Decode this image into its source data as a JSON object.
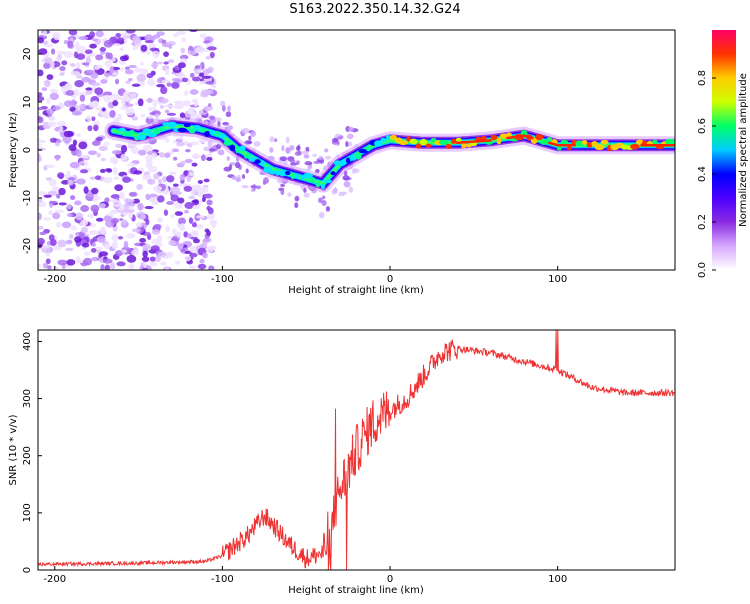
{
  "title": "S163.2022.350.14.32.G24",
  "chart_data": [
    {
      "type": "heatmap",
      "xlabel": "Height of straight line (km)",
      "ylabel": "Frequency (Hz)",
      "xlim": [
        -210,
        170
      ],
      "ylim": [
        -25,
        25
      ],
      "xticks": [
        -200,
        -100,
        0,
        100
      ],
      "yticks": [
        -20,
        -10,
        0,
        10,
        20
      ],
      "colorbar": {
        "label": "Normalized spectral amplitude",
        "range": [
          0,
          1
        ],
        "ticks": [
          "0.0",
          "0.2",
          "0.4",
          "0.6",
          "0.8"
        ],
        "tick_values": [
          0,
          0.2,
          0.4,
          0.6,
          0.8
        ],
        "colors": [
          "#ffffff",
          "#d7a8ff",
          "#8a2be2",
          "#4b00ff",
          "#0000ff",
          "#00ccff",
          "#00ff66",
          "#ccff00",
          "#ffcc00",
          "#ff3300",
          "#ff0066"
        ]
      },
      "ridge": {
        "x": [
          -165,
          -150,
          -130,
          -115,
          -100,
          -90,
          -80,
          -70,
          -60,
          -50,
          -40,
          -30,
          -20,
          -10,
          0,
          20,
          40,
          60,
          80,
          90,
          100,
          120,
          140,
          170
        ],
        "y": [
          4,
          3,
          5,
          4.5,
          3,
          0,
          -2,
          -4,
          -5,
          -6,
          -7,
          -3,
          -1,
          1,
          2,
          1.5,
          1.5,
          2,
          3,
          2,
          1,
          1,
          1,
          1
        ]
      },
      "noise_region_x": [
        -210,
        -105
      ]
    },
    {
      "type": "line",
      "xlabel": "Height of straight line (km)",
      "ylabel": "SNR (10 * v/v)",
      "xlim": [
        -210,
        170
      ],
      "ylim": [
        0,
        420
      ],
      "xticks": [
        -200,
        -100,
        0,
        100
      ],
      "yticks": [
        0,
        100,
        200,
        300,
        400
      ],
      "color": "#ee3333",
      "trend": {
        "x": [
          -210,
          -150,
          -110,
          -100,
          -85,
          -75,
          -70,
          -60,
          -50,
          -40,
          -35,
          -30,
          -20,
          -10,
          0,
          10,
          20,
          30,
          40,
          60,
          80,
          100,
          110,
          120,
          140,
          170
        ],
        "y": [
          10,
          12,
          15,
          25,
          60,
          95,
          80,
          45,
          20,
          30,
          80,
          140,
          210,
          260,
          280,
          300,
          340,
          380,
          388,
          380,
          365,
          350,
          335,
          320,
          310,
          310
        ]
      }
    }
  ]
}
